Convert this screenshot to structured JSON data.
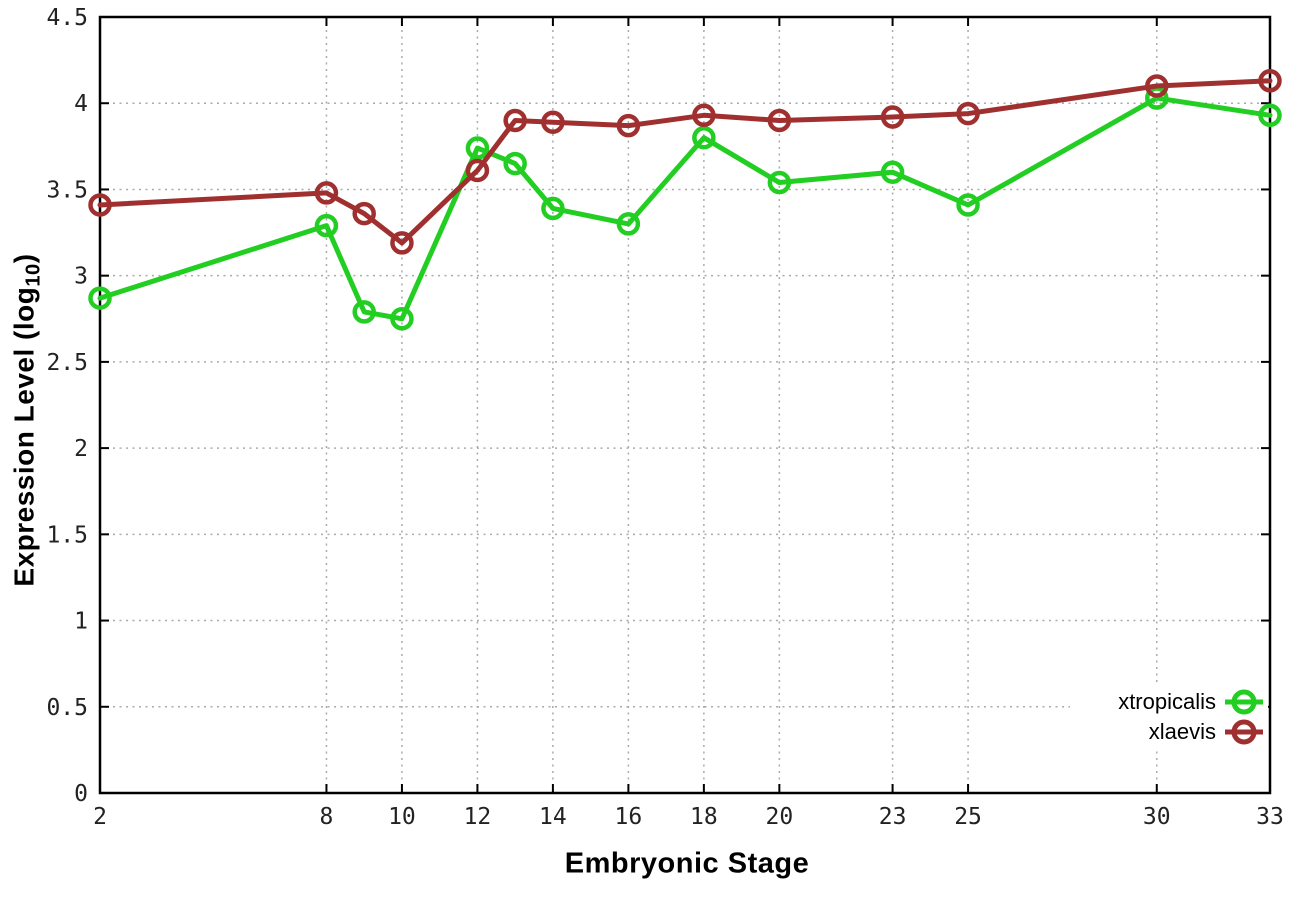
{
  "figure": {
    "background": "#ffffff",
    "axis_color": "#000000",
    "grid_color": "#aaaaaa",
    "tick_label_color": "#222222"
  },
  "chart_data": {
    "type": "line",
    "title": "",
    "xlabel": "Embryonic Stage",
    "ylabel_prefix": "Expression Level (log",
    "ylabel_sub": "10",
    "ylabel_suffix": ")",
    "xlim": [
      2,
      33
    ],
    "ylim": [
      0,
      4.5
    ],
    "grid": true,
    "legend_position": "bottom-right",
    "marker": "open-circle",
    "x": [
      2,
      8,
      9,
      10,
      12,
      13,
      14,
      16,
      18,
      20,
      23,
      25,
      30,
      33
    ],
    "series": [
      {
        "name": "xtropicalis",
        "color": "#22ce22",
        "marker": "open-circle",
        "values": [
          2.87,
          3.29,
          2.79,
          2.75,
          3.74,
          3.65,
          3.39,
          3.3,
          3.8,
          3.54,
          3.6,
          3.41,
          4.03,
          3.93
        ]
      },
      {
        "name": "xlaevis",
        "color": "#a03030",
        "marker": "open-circle",
        "values": [
          3.41,
          3.48,
          3.36,
          3.19,
          3.61,
          3.9,
          3.89,
          3.87,
          3.93,
          3.9,
          3.92,
          3.94,
          4.1,
          4.13
        ]
      }
    ],
    "x_ticks": [
      {
        "v": 2,
        "label": "2"
      },
      {
        "v": 8,
        "label": "8"
      },
      {
        "v": 10,
        "label": "10"
      },
      {
        "v": 12,
        "label": "12"
      },
      {
        "v": 14,
        "label": "14"
      },
      {
        "v": 16,
        "label": "16"
      },
      {
        "v": 18,
        "label": "18"
      },
      {
        "v": 20,
        "label": "20"
      },
      {
        "v": 23,
        "label": "23"
      },
      {
        "v": 25,
        "label": "25"
      },
      {
        "v": 30,
        "label": "30"
      },
      {
        "v": 33,
        "label": "33"
      }
    ],
    "y_ticks": [
      {
        "v": 0,
        "label": "0"
      },
      {
        "v": 0.5,
        "label": "0.5"
      },
      {
        "v": 1,
        "label": "1"
      },
      {
        "v": 1.5,
        "label": "1.5"
      },
      {
        "v": 2,
        "label": "2"
      },
      {
        "v": 2.5,
        "label": "2.5"
      },
      {
        "v": 3,
        "label": "3"
      },
      {
        "v": 3.5,
        "label": "3.5"
      },
      {
        "v": 4,
        "label": "4"
      },
      {
        "v": 4.5,
        "label": "4.5"
      }
    ]
  }
}
